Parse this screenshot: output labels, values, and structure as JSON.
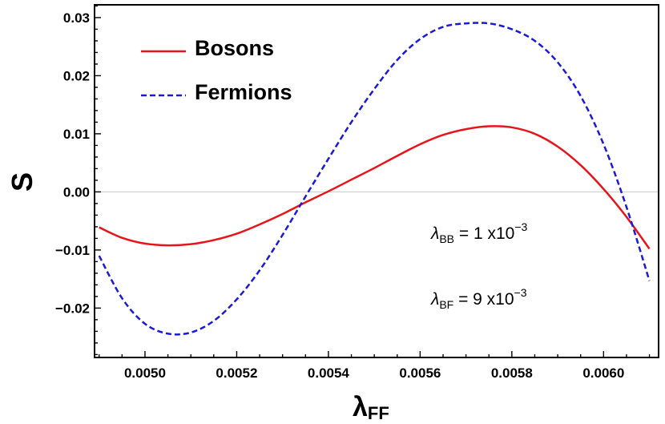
{
  "chart_data": {
    "type": "line",
    "xlabel": "λ",
    "xlabel_sub": "FF",
    "ylabel": "S",
    "xlim": [
      0.00489,
      0.00612
    ],
    "ylim": [
      -0.0285,
      0.0322
    ],
    "x_ticks": [
      0.005,
      0.0052,
      0.0054,
      0.0056,
      0.0058,
      0.006
    ],
    "x_tick_labels": [
      "0.0050",
      "0.0052",
      "0.0054",
      "0.0056",
      "0.0058",
      "0.0060"
    ],
    "y_ticks": [
      -0.02,
      -0.01,
      0.0,
      0.01,
      0.02,
      0.03
    ],
    "y_tick_labels": [
      "−0.02",
      "−0.01",
      "0.00",
      "0.01",
      "0.02",
      "0.03"
    ],
    "grid": false,
    "zero_line": true,
    "legend_position": "top-left",
    "series": [
      {
        "name": "Bosons",
        "color": "#e8141b",
        "dash": "solid",
        "x": [
          0.0049,
          0.00495,
          0.005,
          0.00505,
          0.0051,
          0.00515,
          0.0052,
          0.00525,
          0.0053,
          0.00535,
          0.0054,
          0.00545,
          0.0055,
          0.00555,
          0.0056,
          0.00565,
          0.0057,
          0.00575,
          0.0058,
          0.00585,
          0.0059,
          0.00595,
          0.006,
          0.00605,
          0.0061
        ],
        "y": [
          -0.0061,
          -0.0079,
          -0.0089,
          -0.0092,
          -0.009,
          -0.0083,
          -0.0072,
          -0.0056,
          -0.0038,
          -0.0018,
          0.0001,
          0.0021,
          0.0041,
          0.0062,
          0.0082,
          0.0098,
          0.0108,
          0.0113,
          0.0111,
          0.01,
          0.0078,
          0.0046,
          0.0005,
          -0.0043,
          -0.0098
        ]
      },
      {
        "name": "Fermions",
        "color": "#1a1ad8",
        "dash": "dashed",
        "x": [
          0.0049,
          0.00495,
          0.005,
          0.00505,
          0.0051,
          0.00515,
          0.0052,
          0.00525,
          0.0053,
          0.00535,
          0.0054,
          0.00545,
          0.0055,
          0.00555,
          0.0056,
          0.00565,
          0.0057,
          0.00575,
          0.0058,
          0.00585,
          0.0059,
          0.00595,
          0.006,
          0.00605,
          0.0061
        ],
        "y": [
          -0.011,
          -0.0183,
          -0.0227,
          -0.0244,
          -0.0242,
          -0.0222,
          -0.0185,
          -0.0135,
          -0.0074,
          -0.0008,
          0.0057,
          0.012,
          0.0177,
          0.0227,
          0.0263,
          0.0284,
          0.029,
          0.029,
          0.028,
          0.026,
          0.0223,
          0.0165,
          0.0082,
          -0.0026,
          -0.0153
        ]
      }
    ],
    "annotations": [
      {
        "symbol": "λ",
        "sub": "BB",
        "text": " =  1 x10",
        "sup": "−3"
      },
      {
        "symbol": "λ",
        "sub": "BF",
        "text": " =  9 x10",
        "sup": "−3"
      }
    ]
  }
}
